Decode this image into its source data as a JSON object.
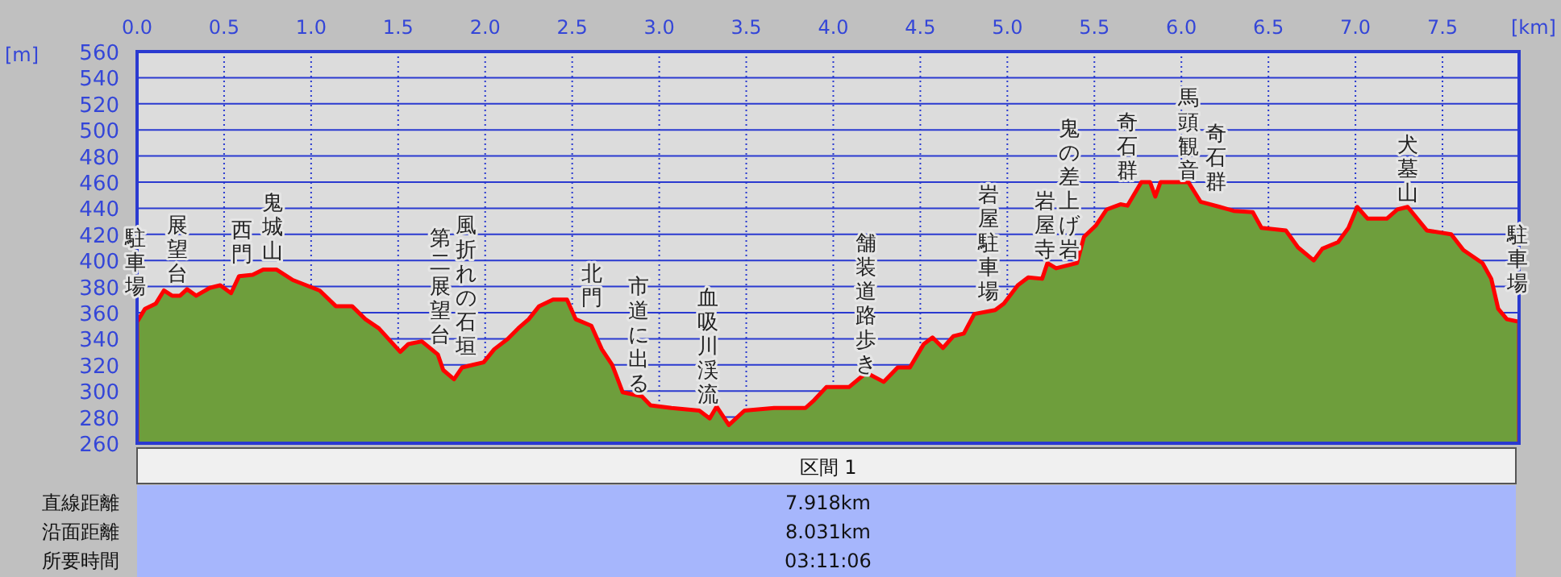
{
  "chart_data": {
    "type": "area",
    "xlabel": "[km]",
    "ylabel": "[m]",
    "xlim": [
      0,
      7.94
    ],
    "ylim": [
      260,
      560
    ],
    "xticks": [
      {
        "value": 0,
        "label": "0.0"
      },
      {
        "value": 0.5,
        "label": "0.5"
      },
      {
        "value": 1,
        "label": "1.0"
      },
      {
        "value": 1.5,
        "label": "1.5"
      },
      {
        "value": 2,
        "label": "2.0"
      },
      {
        "value": 2.5,
        "label": "2.5"
      },
      {
        "value": 3,
        "label": "3.0"
      },
      {
        "value": 3.5,
        "label": "3.5"
      },
      {
        "value": 4,
        "label": "4.0"
      },
      {
        "value": 4.5,
        "label": "4.5"
      },
      {
        "value": 5,
        "label": "5.0"
      },
      {
        "value": 5.5,
        "label": "5.5"
      },
      {
        "value": 6,
        "label": "6.0"
      },
      {
        "value": 6.5,
        "label": "6.5"
      },
      {
        "value": 7,
        "label": "7.0"
      },
      {
        "value": 7.5,
        "label": "7.5"
      }
    ],
    "yticks": [
      260,
      280,
      300,
      320,
      340,
      360,
      380,
      400,
      420,
      440,
      460,
      480,
      500,
      520,
      540,
      560
    ],
    "grid": true,
    "x": [
      0,
      0.046,
      0.108,
      0.154,
      0.201,
      0.247,
      0.287,
      0.34,
      0.417,
      0.478,
      0.54,
      0.586,
      0.664,
      0.725,
      0.802,
      0.895,
      1.049,
      1.142,
      1.235,
      1.312,
      1.389,
      1.512,
      1.559,
      1.636,
      1.728,
      1.759,
      1.821,
      1.867,
      1.929,
      1.991,
      2.052,
      2.13,
      2.19,
      2.25,
      2.31,
      2.39,
      2.47,
      2.52,
      2.61,
      2.67,
      2.73,
      2.79,
      2.9,
      2.95,
      3.07,
      3.23,
      3.29,
      3.33,
      3.4,
      3.49,
      3.66,
      3.84,
      3.89,
      3.96,
      4.09,
      4.19,
      4.29,
      4.37,
      4.44,
      4.52,
      4.57,
      4.63,
      4.69,
      4.75,
      4.81,
      4.93,
      4.98,
      5.06,
      5.12,
      5.2,
      5.23,
      5.28,
      5.4,
      5.44,
      5.51,
      5.57,
      5.65,
      5.69,
      5.77,
      5.82,
      5.85,
      5.88,
      6.04,
      6.11,
      6.22,
      6.3,
      6.41,
      6.46,
      6.6,
      6.67,
      6.76,
      6.81,
      6.9,
      6.96,
      7.01,
      7.07,
      7.18,
      7.24,
      7.3,
      7.41,
      7.55,
      7.62,
      7.73,
      7.78,
      7.82,
      7.87,
      7.94
    ],
    "series": [
      {
        "color": "#6e9e3c",
        "values": [
          353,
          363,
          367,
          377,
          373,
          373,
          378,
          373,
          379,
          381,
          375,
          388,
          389,
          393,
          393,
          385,
          377,
          365,
          365,
          355,
          348,
          330,
          336,
          338,
          328,
          316,
          309,
          318,
          320,
          322,
          332,
          340,
          348,
          355,
          365,
          370,
          370,
          355,
          350,
          332,
          320,
          299,
          296,
          289,
          287,
          285,
          279,
          288,
          274,
          285,
          287,
          287,
          293,
          303,
          303,
          314,
          307,
          318,
          318,
          336,
          341,
          333,
          342,
          344,
          359,
          362,
          367,
          381,
          387,
          386,
          398,
          394,
          398,
          418,
          427,
          439,
          443,
          442,
          460,
          460,
          449,
          460,
          460,
          445,
          441,
          438,
          437,
          425,
          423,
          410,
          400,
          409,
          414,
          425,
          441,
          432,
          432,
          439,
          441,
          423,
          420,
          408,
          398,
          386,
          363,
          355,
          353
        ]
      }
    ],
    "annotations": [
      "駐車場",
      "展望台",
      "西門",
      "鬼城山",
      "第二展望台",
      "風折れの石垣",
      "北門",
      "市道に出る",
      "血吸川渓流",
      "舗装道路歩き",
      "岩屋駐車場",
      "岩屋寺",
      "鬼の差上げ岩",
      "奇石群",
      "馬頭観音",
      "奇石群",
      "犬墓山",
      "駐車場",
      "区間 1",
      "直線距離",
      "7.918km",
      "沿面距離",
      "8.031km",
      "所要時間",
      "03:11:06"
    ]
  }
}
